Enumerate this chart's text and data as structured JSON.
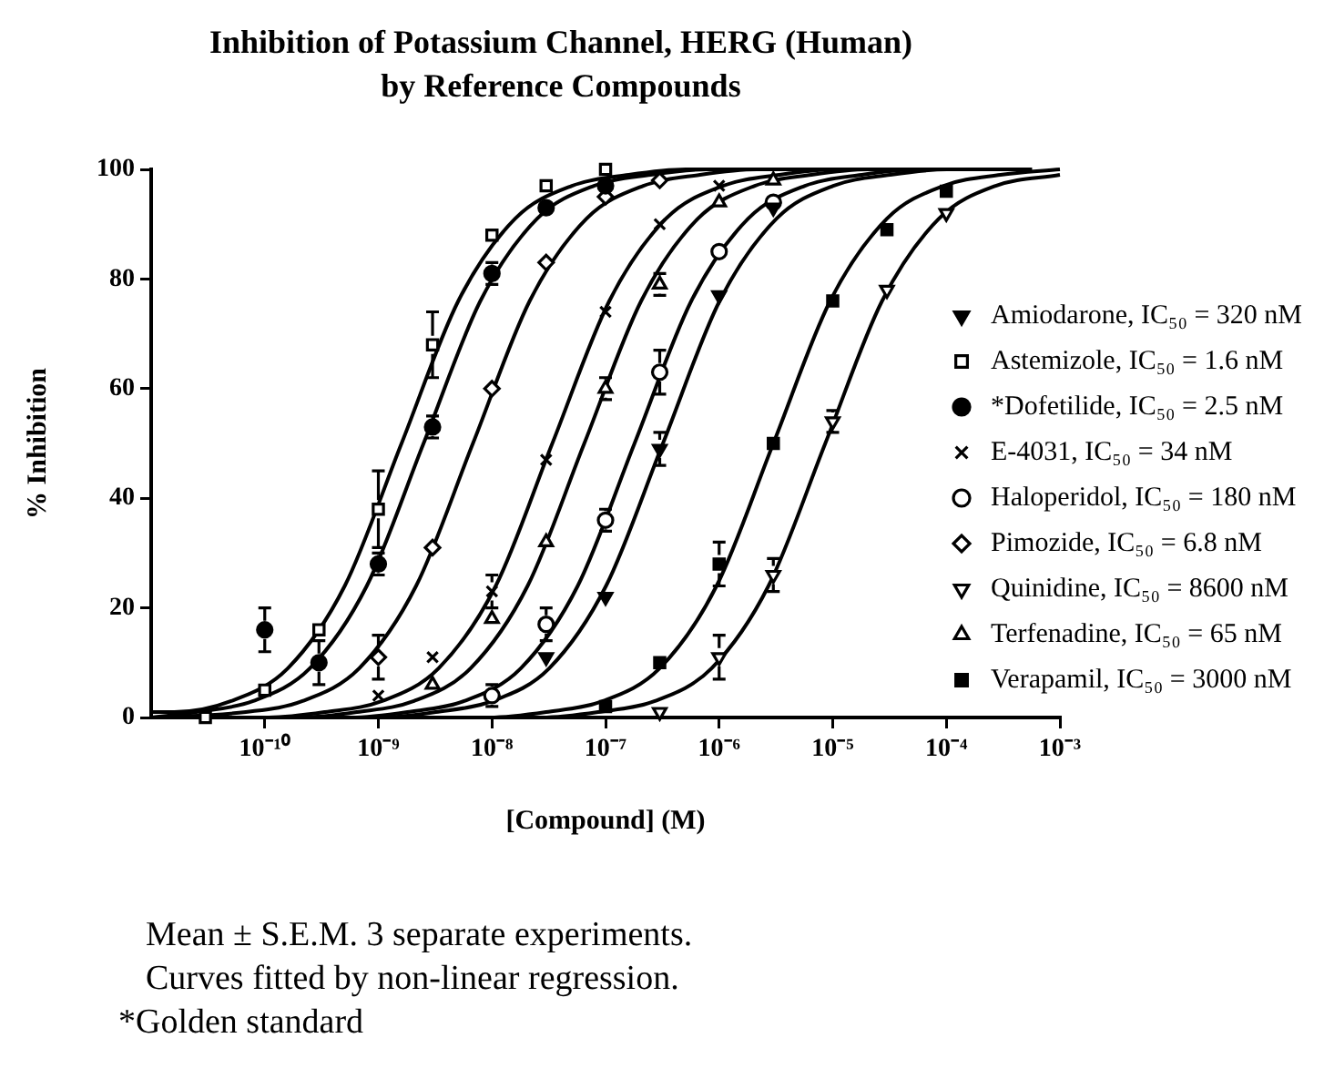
{
  "chart_data": {
    "type": "scatter",
    "title": "Inhibition of  Potassium Channel, HERG (Human)\nby Reference Compounds",
    "xlabel": "[Compound] (M)",
    "ylabel": "% Inhibition",
    "annotations": [
      "Mean ± S.E.M. 3 separate experiments.",
      "Curves fitted by non-linear regression.",
      "*Golden standard"
    ],
    "log": "x",
    "grid": false,
    "legend": "bottom right",
    "xlim": [
      1e-11,
      0.001
    ],
    "xticks": [
      {
        "value": 1e-10,
        "label": "10⁻¹⁰"
      },
      {
        "value": 1e-09,
        "label": "10⁻⁹"
      },
      {
        "value": 1e-08,
        "label": "10⁻⁸"
      },
      {
        "value": 1e-07,
        "label": "10⁻⁷"
      },
      {
        "value": 1e-06,
        "label": "10⁻⁶"
      },
      {
        "value": 1e-05,
        "label": "10⁻⁵"
      },
      {
        "value": 0.0001,
        "label": "10⁻⁴"
      },
      {
        "value": 0.001,
        "label": "10⁻³"
      }
    ],
    "ylim": [
      0,
      100
    ],
    "yticks": [
      0,
      20,
      40,
      60,
      80,
      100
    ],
    "series": [
      {
        "name": "Amiodarone, IC₅₀ = 320 nM",
        "color": "#000000",
        "marker": "triangle-down-filled",
        "x": [
          3e-08,
          1e-07,
          3e-07,
          1e-06,
          3e-06
        ],
        "values": [
          11,
          22,
          49,
          77,
          93
        ],
        "errors": [
          null,
          null,
          3,
          null,
          null
        ]
      },
      {
        "name": "Astemizole, IC₅₀ = 1.6 nM",
        "color": "#000000",
        "marker": "square",
        "x": [
          3e-11,
          1e-10,
          3e-10,
          1e-09,
          3e-09,
          1e-08,
          3e-08,
          1e-07
        ],
        "values": [
          0,
          5,
          16,
          38,
          68,
          88,
          97,
          100
        ],
        "errors": [
          null,
          null,
          null,
          7,
          6,
          null,
          null,
          null
        ]
      },
      {
        "name": "*Dofetilide, IC₅₀ = 2.5 nM",
        "color": "#000000",
        "marker": "circle-filled",
        "x": [
          1e-10,
          3e-10,
          1e-09,
          3e-09,
          1e-08,
          3e-08,
          1e-07
        ],
        "values": [
          16,
          10,
          28,
          53,
          81,
          93,
          97
        ],
        "errors": [
          4,
          4,
          2,
          2,
          2,
          null,
          null
        ]
      },
      {
        "name": "E-4031, IC₅₀ = 34 nM",
        "color": "#000000",
        "marker": "cross",
        "x": [
          1e-09,
          3e-09,
          1e-08,
          3e-08,
          1e-07,
          3e-07,
          1e-06
        ],
        "values": [
          4,
          11,
          23,
          47,
          74,
          90,
          97
        ],
        "errors": [
          null,
          null,
          3,
          null,
          null,
          null,
          null
        ]
      },
      {
        "name": "Haloperidol, IC₅₀ = 180 nM",
        "color": "#000000",
        "marker": "circle",
        "x": [
          1e-08,
          3e-08,
          1e-07,
          3e-07,
          1e-06,
          3e-06
        ],
        "values": [
          4,
          17,
          36,
          63,
          85,
          94
        ],
        "errors": [
          2,
          3,
          2,
          4,
          null,
          null
        ]
      },
      {
        "name": "Pimozide, IC₅₀ = 6.8 nM",
        "color": "#000000",
        "marker": "diamond",
        "x": [
          1e-09,
          3e-09,
          1e-08,
          3e-08,
          1e-07,
          3e-07
        ],
        "values": [
          11,
          31,
          60,
          83,
          95,
          98
        ],
        "errors": [
          4,
          null,
          null,
          null,
          null,
          null
        ]
      },
      {
        "name": "Quinidine, IC₅₀ = 8600 nM",
        "color": "#000000",
        "marker": "triangle-down",
        "x": [
          3e-07,
          1e-06,
          3e-06,
          1e-05,
          3e-05,
          0.0001
        ],
        "values": [
          1,
          11,
          26,
          54,
          78,
          92
        ],
        "errors": [
          null,
          4,
          3,
          2,
          null,
          null
        ]
      },
      {
        "name": "Terfenadine, IC₅₀ = 65 nM",
        "color": "#000000",
        "marker": "triangle",
        "x": [
          3e-09,
          1e-08,
          3e-08,
          1e-07,
          3e-07,
          1e-06,
          3e-06
        ],
        "values": [
          6,
          18,
          32,
          60,
          79,
          94,
          98
        ],
        "errors": [
          null,
          null,
          null,
          2,
          2,
          null,
          null
        ]
      },
      {
        "name": "Verapamil, IC₅₀ = 3000 nM",
        "color": "#000000",
        "marker": "square-filled",
        "x": [
          1e-07,
          3e-07,
          1e-06,
          3e-06,
          1e-05,
          3e-05,
          0.0001
        ],
        "values": [
          2,
          10,
          28,
          50,
          76,
          89,
          96
        ],
        "errors": [
          null,
          null,
          4,
          null,
          null,
          null,
          null
        ]
      },
      {
        "type": "line",
        "color": "#000000",
        "x": [
          1.01e-10,
          3.2e-10,
          1.01e-09,
          3.2e-09,
          1.01e-08,
          3.2e-08,
          1.01e-07,
          3.2e-07,
          1.01e-06,
          3.2e-06,
          1.01e-05,
          3.2e-05,
          0.000101,
          0.00032
        ],
        "values": [
          0,
          0,
          0,
          1,
          3,
          9,
          24,
          50,
          76,
          91,
          97,
          99,
          100,
          100
        ]
      },
      {
        "type": "line",
        "color": "#000000",
        "x": [
          1e-11,
          1.6e-11,
          5.06e-11,
          1.6e-10,
          5.06e-10,
          1.6e-09,
          5.06e-09,
          1.6e-08,
          5.06e-08,
          1.6e-07,
          5.06e-07,
          1.6e-06,
          5.06e-06
        ],
        "values": [
          1,
          1,
          3,
          9,
          24,
          50,
          76,
          91,
          97,
          99,
          100,
          100,
          100
        ]
      },
      {
        "type": "line",
        "color": "#000000",
        "x": [
          1e-11,
          2.5e-11,
          7.91e-11,
          2.5e-10,
          7.91e-10,
          2.5e-09,
          7.91e-09,
          2.5e-08,
          7.91e-08,
          2.5e-07,
          7.91e-07,
          2.5e-06,
          7.91e-06
        ],
        "values": [
          0,
          1,
          3,
          9,
          24,
          50,
          76,
          91,
          97,
          99,
          100,
          100,
          100
        ]
      },
      {
        "type": "line",
        "color": "#000000",
        "x": [
          1.08e-11,
          3.4e-11,
          1.08e-10,
          3.4e-10,
          1.08e-09,
          3.4e-09,
          1.08e-08,
          3.4e-08,
          1.08e-07,
          3.4e-07,
          1.08e-06,
          3.4e-06,
          1.08e-05,
          3.4e-05,
          0.000108
        ],
        "values": [
          0,
          0,
          0,
          1,
          3,
          9,
          24,
          50,
          76,
          91,
          97,
          99,
          100,
          100,
          100
        ]
      },
      {
        "type": "line",
        "color": "#000000",
        "x": [
          5.69e-11,
          1.8e-10,
          5.69e-10,
          1.8e-09,
          5.69e-09,
          1.8e-08,
          5.69e-08,
          1.8e-07,
          5.69e-07,
          1.8e-06,
          5.69e-06,
          1.8e-05,
          5.69e-05,
          0.00018,
          0.000569
        ],
        "values": [
          0,
          0,
          0,
          1,
          3,
          9,
          24,
          50,
          76,
          91,
          97,
          99,
          100,
          100,
          100
        ]
      },
      {
        "type": "line",
        "color": "#000000",
        "x": [
          1e-11,
          6.8e-11,
          2.15e-10,
          6.8e-10,
          2.15e-09,
          6.8e-09,
          2.15e-08,
          6.8e-08,
          2.15e-07,
          6.8e-07,
          2.15e-06,
          6.8e-06,
          2.15e-05
        ],
        "values": [
          0,
          1,
          3,
          9,
          24,
          50,
          76,
          91,
          97,
          99,
          100,
          100,
          100
        ]
      },
      {
        "type": "line",
        "color": "#000000",
        "x": [
          2.72e-09,
          8.6e-09,
          2.72e-08,
          8.6e-08,
          2.72e-07,
          8.6e-07,
          2.72e-06,
          8.6e-06,
          2.72e-05,
          8.6e-05,
          0.000272,
          0.001
        ],
        "values": [
          0,
          0,
          0,
          1,
          3,
          9,
          24,
          50,
          76,
          91,
          97,
          99
        ]
      },
      {
        "type": "line",
        "color": "#000000",
        "x": [
          2.06e-11,
          6.5e-11,
          2.06e-10,
          6.5e-10,
          2.06e-09,
          6.5e-09,
          2.06e-08,
          6.5e-08,
          2.06e-07,
          6.5e-07,
          2.06e-06,
          6.5e-06,
          2.06e-05,
          6.5e-05,
          0.000206
        ],
        "values": [
          0,
          0,
          0,
          1,
          3,
          9,
          24,
          50,
          76,
          91,
          97,
          99,
          100,
          100,
          100
        ]
      },
      {
        "type": "line",
        "color": "#000000",
        "x": [
          9.49e-10,
          3e-09,
          9.49e-09,
          3e-08,
          9.49e-08,
          3e-07,
          9.49e-07,
          3e-06,
          9.49e-06,
          3e-05,
          9.49e-05,
          0.0003,
          0.001
        ],
        "values": [
          0,
          0,
          0,
          1,
          3,
          9,
          24,
          50,
          76,
          91,
          97,
          99,
          100
        ]
      }
    ]
  }
}
